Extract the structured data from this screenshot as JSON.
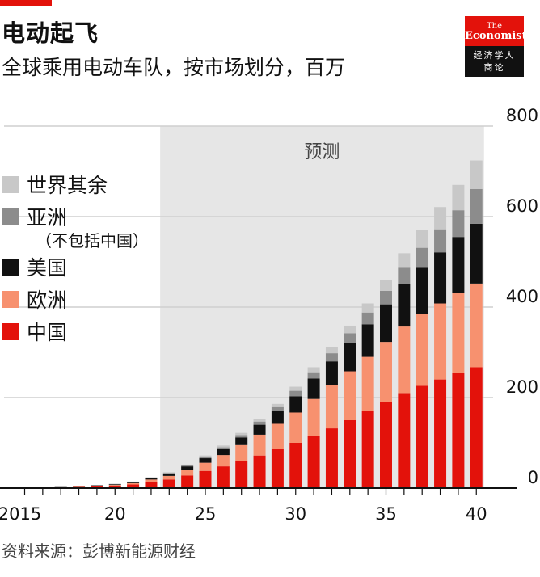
{
  "header": {
    "title": "电动起飞",
    "subtitle": "全球乘用电动车队，按市场划分，百万"
  },
  "logo": {
    "line1": "The",
    "line2": "Economist",
    "cn_line1": "经济学人",
    "cn_line2": "商论"
  },
  "source": "资料来源：彭博新能源财经",
  "colors": {
    "china": "#e3120b",
    "europe": "#f7916f",
    "usa": "#111111",
    "asia": "#8c8c8c",
    "rest": "#c8c8c8",
    "forecast_bg": "#e6e6e6"
  },
  "chart_data": {
    "type": "bar",
    "stacked": true,
    "x": [
      2015,
      2016,
      2017,
      2018,
      2019,
      2020,
      2021,
      2022,
      2023,
      2024,
      2025,
      2026,
      2027,
      2028,
      2029,
      2030,
      2031,
      2032,
      2033,
      2034,
      2035,
      2036,
      2037,
      2038,
      2039,
      2040
    ],
    "x_tick_labels": [
      {
        "x": 2015,
        "label": "2015"
      },
      {
        "x": 2020,
        "label": "20"
      },
      {
        "x": 2025,
        "label": "25"
      },
      {
        "x": 2030,
        "label": "30"
      },
      {
        "x": 2035,
        "label": "35"
      },
      {
        "x": 2040,
        "label": "40"
      }
    ],
    "y_ticks": [
      0,
      200,
      400,
      600,
      800
    ],
    "ylim": [
      0,
      800
    ],
    "y_axis_side": "right",
    "grid": true,
    "forecast": {
      "label": "预测",
      "start_year": 2023,
      "end_year": 2040
    },
    "legend_position": "left",
    "series": [
      {
        "key": "china",
        "name": "中国",
        "values": [
          0.3,
          0.6,
          1.3,
          2.5,
          3.8,
          5,
          8,
          14,
          19,
          28,
          38,
          48,
          60,
          72,
          86,
          100,
          115,
          132,
          150,
          170,
          190,
          210,
          226,
          240,
          255,
          267
        ]
      },
      {
        "key": "europe",
        "name": "欧洲",
        "values": [
          0.2,
          0.3,
          0.5,
          0.8,
          1.2,
          2,
          3,
          5,
          8,
          13,
          18,
          25,
          35,
          46,
          56,
          67,
          82,
          95,
          108,
          120,
          133,
          147,
          158,
          168,
          177,
          185
        ]
      },
      {
        "key": "usa",
        "name": "美国",
        "values": [
          0.2,
          0.3,
          0.5,
          0.8,
          1.1,
          1.5,
          2,
          3,
          5,
          7,
          10,
          13,
          17,
          22,
          28,
          36,
          45,
          53,
          62,
          72,
          83,
          93,
          103,
          113,
          123,
          132
        ]
      },
      {
        "key": "asia",
        "name": "亚洲",
        "name_note": "（不包括中国）",
        "values": [
          0.1,
          0.2,
          0.3,
          0.4,
          0.5,
          0.6,
          0.8,
          1,
          1.5,
          2,
          3,
          4,
          5,
          7,
          9,
          12,
          14,
          18,
          22,
          26,
          30,
          37,
          44,
          51,
          59,
          77
        ]
      },
      {
        "key": "rest",
        "name": "世界其余",
        "values": [
          0,
          0.1,
          0.2,
          0.3,
          0.4,
          0.5,
          0.7,
          1,
          1.5,
          2,
          3,
          4,
          5,
          6,
          7,
          9,
          11,
          14,
          17,
          20,
          24,
          32,
          40,
          49,
          56,
          63
        ]
      }
    ]
  }
}
